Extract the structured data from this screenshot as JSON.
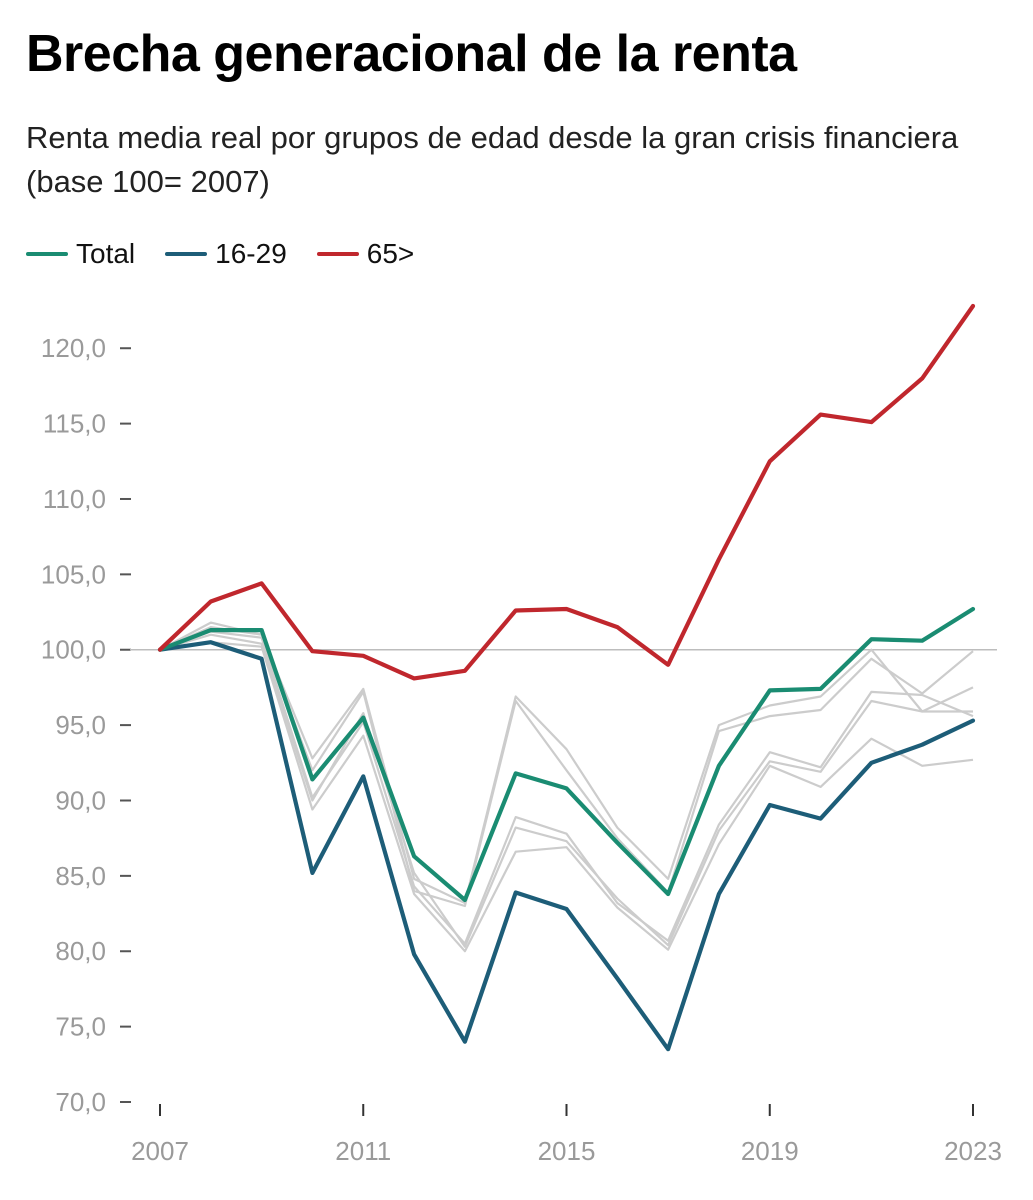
{
  "title": "Brecha generacional de la renta",
  "subtitle": "Renta media real por grupos de edad desde la gran crisis financiera (base 100= 2007)",
  "legend": [
    {
      "label": "Total",
      "color": "#1a8c72"
    },
    {
      "label": "16-29",
      "color": "#1d5d78"
    },
    {
      "label": "65>",
      "color": "#c0272d"
    }
  ],
  "chart_data": {
    "type": "line",
    "x": [
      2007,
      2008,
      2009,
      2010,
      2011,
      2012,
      2013,
      2014,
      2015,
      2016,
      2017,
      2018,
      2019,
      2020,
      2021,
      2022,
      2023
    ],
    "xticks": [
      2007,
      2011,
      2015,
      2019,
      2023
    ],
    "xtick_labels": [
      "2007",
      "2011",
      "2015",
      "2019",
      "2023"
    ],
    "ylim": [
      70,
      123
    ],
    "yticks": [
      70,
      75,
      80,
      85,
      90,
      95,
      100,
      105,
      110,
      115,
      120
    ],
    "ytick_labels": [
      "70,0",
      "75,0",
      "80,0",
      "85,0",
      "90,0",
      "95,0",
      "100,0",
      "105,0",
      "110,0",
      "115,0",
      "120,0"
    ],
    "reference_line": 100,
    "grid": false,
    "legend_position": "top-left",
    "background_series_color": "#cccccc",
    "background_series": [
      {
        "values": [
          100,
          101.8,
          101.0,
          92.8,
          97.4,
          84.8,
          83.2,
          96.9,
          93.4,
          88.2,
          84.8,
          95.0,
          96.3,
          96.9,
          100.0,
          95.9,
          97.5
        ]
      },
      {
        "values": [
          100,
          101.5,
          101.0,
          92.0,
          97.2,
          84.0,
          83.0,
          96.6,
          92.0,
          87.5,
          83.9,
          94.6,
          95.6,
          96.0,
          99.4,
          97.1,
          99.9
        ]
      },
      {
        "values": [
          100,
          101.2,
          100.8,
          90.2,
          95.2,
          84.3,
          80.5,
          88.9,
          87.8,
          83.2,
          80.7,
          88.4,
          93.2,
          92.2,
          97.2,
          97.0,
          95.6
        ]
      },
      {
        "values": [
          100,
          100.5,
          100.2,
          89.4,
          94.3,
          83.8,
          80.0,
          86.6,
          86.9,
          82.9,
          80.1,
          87.1,
          92.3,
          90.9,
          94.1,
          92.3,
          92.7
        ]
      },
      {
        "values": [
          100,
          101.0,
          100.4,
          90.0,
          95.8,
          85.2,
          80.3,
          88.2,
          87.3,
          83.5,
          80.4,
          88.0,
          92.6,
          91.9,
          96.6,
          95.9,
          95.9
        ]
      }
    ],
    "series": [
      {
        "name": "Total",
        "color": "#1a8c72",
        "values": [
          100,
          101.3,
          101.3,
          91.4,
          95.5,
          86.3,
          83.4,
          91.8,
          90.8,
          87.2,
          83.8,
          92.3,
          97.3,
          97.4,
          100.7,
          100.6,
          102.7
        ]
      },
      {
        "name": "16-29",
        "color": "#1d5d78",
        "values": [
          100,
          100.5,
          99.4,
          85.2,
          91.6,
          79.8,
          74.0,
          83.9,
          82.8,
          78.2,
          73.5,
          83.8,
          89.7,
          88.8,
          92.5,
          93.7,
          95.3
        ]
      },
      {
        "name": "65>",
        "color": "#c0272d",
        "values": [
          100,
          103.2,
          104.4,
          99.9,
          99.6,
          98.1,
          98.6,
          102.6,
          102.7,
          101.5,
          99.0,
          106.0,
          112.5,
          115.6,
          115.1,
          118.0,
          122.8
        ]
      }
    ]
  }
}
